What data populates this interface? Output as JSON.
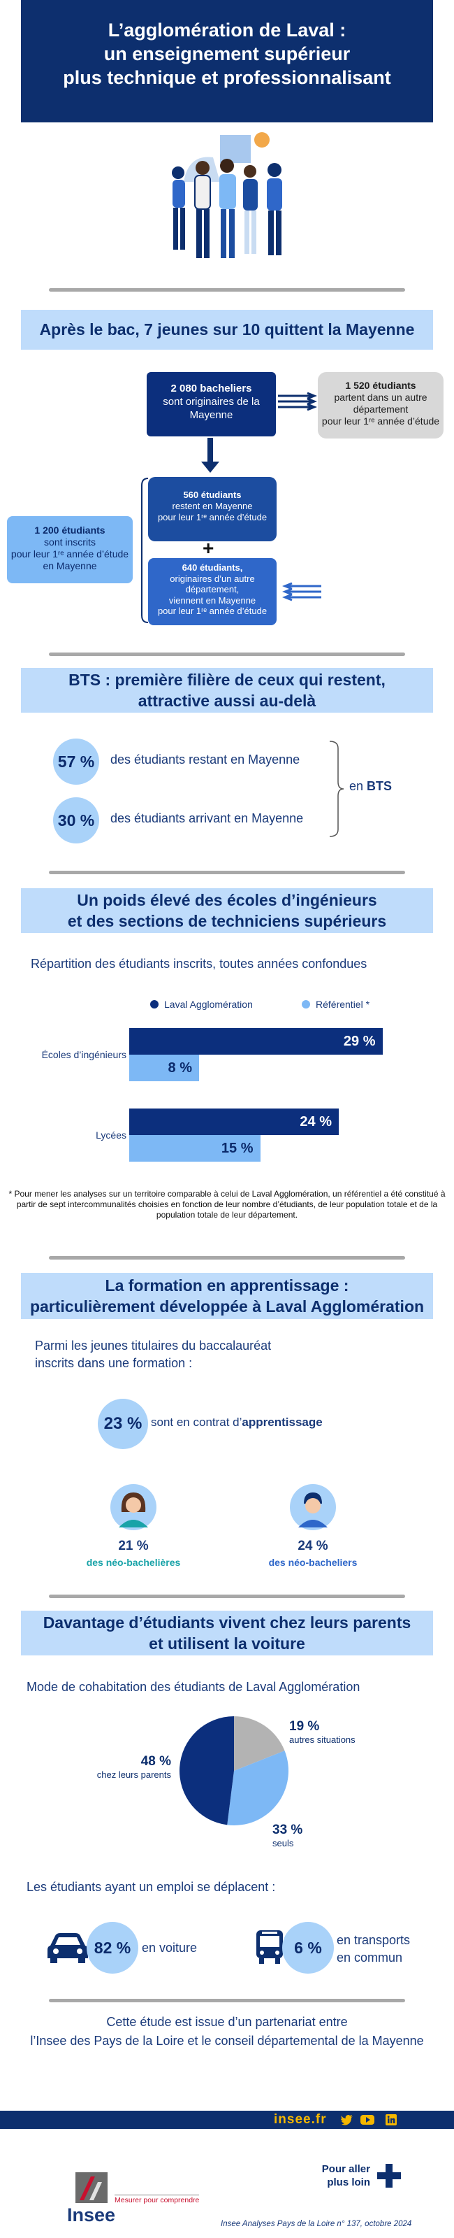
{
  "header": {
    "title_line1": "L’agglomération de Laval :",
    "title_line2": "un enseignement supérieur",
    "title_line3": "plus technique et professionnalisant"
  },
  "section1": {
    "title": "Après le bac, 7 jeunes sur 10 quittent la Mayenne",
    "bacheliers_bold": "2 080 bacheliers",
    "bacheliers_text": "sont originaires de la Mayenne",
    "partent_bold": "1 520 étudiants",
    "partent_text1": "partent dans un autre département",
    "partent_text2": "pour leur 1ʳᵉ année d’étude",
    "restent_bold": "560 étudiants",
    "restent_text1": "restent en Mayenne",
    "restent_text2": "pour leur 1ʳᵉ année d’étude",
    "plus_sign": "+",
    "arrivent_bold": "640 étudiants,",
    "arrivent_text1": "originaires d’un autre département,",
    "arrivent_text2": "viennent en Mayenne",
    "arrivent_text3": "pour leur 1ʳᵉ année d’étude",
    "inscrits_bold": "1 200 étudiants",
    "inscrits_text1": "sont inscrits",
    "inscrits_text2": "pour leur 1ʳᵉ année d’étude",
    "inscrits_text3": "en Mayenne"
  },
  "section2": {
    "title_line1": "BTS : première filière de ceux qui restent,",
    "title_line2": "attractive aussi au-delà",
    "stat1_value": "57 %",
    "stat1_label": "des étudiants restant en Mayenne",
    "stat2_value": "30 %",
    "stat2_label": "des étudiants arrivant en Mayenne",
    "bracket_prefix": "en ",
    "bracket_bold": "BTS"
  },
  "section3": {
    "title_line1": "Un poids élevé des écoles d’ingénieurs",
    "title_line2": "et des sections de techniciens supérieurs",
    "subtitle": "Répartition des étudiants inscrits, toutes années confondues",
    "footnote": "* Pour mener les analyses sur un territoire comparable à celui de Laval Agglomération, un référentiel a été constitué à partir de sept intercommunalités choisies en fonction de leur nombre d’étudiants, de leur population totale et de la population totale de leur département."
  },
  "chart_data": {
    "type": "bar",
    "orientation": "horizontal",
    "categories": [
      "Écoles d’ingénieurs",
      "Lycées"
    ],
    "series": [
      {
        "name": "Laval Agglomération",
        "values": [
          29,
          24
        ],
        "labels": [
          "29 %",
          "24 %"
        ],
        "color": "#0c2f7d"
      },
      {
        "name": "Référentiel *",
        "values": [
          8,
          15
        ],
        "labels": [
          "8 %",
          "15 %"
        ],
        "color": "#7db8f5"
      }
    ],
    "unit": "%",
    "xlim": [
      0,
      30
    ],
    "grid": false,
    "legend": "top"
  },
  "section4": {
    "title_line1": "La formation en apprentissage :",
    "title_line2": "particulièrement développée à Laval Agglomération",
    "intro_line1": "Parmi les jeunes titulaires du baccalauréat",
    "intro_line2": "inscrits dans une formation :",
    "stat_value": "23 %",
    "stat_text": "sont en contrat d’",
    "stat_bold": "apprentissage",
    "female_value": "21 %",
    "female_label": "des néo-bachelières",
    "male_value": "24 %",
    "male_label": "des néo-bacheliers"
  },
  "section5": {
    "title_line1": "Davantage d’étudiants vivent chez leurs parents",
    "title_line2": "et utilisent la voiture",
    "subtitle": "Mode de cohabitation des étudiants de Laval Agglomération",
    "pie": [
      {
        "label": "chez leurs parents",
        "value": 48,
        "display": "48 %",
        "color": "#0c2f7d"
      },
      {
        "label": "autres situations",
        "value": 19,
        "display": "19 %",
        "color": "#b3b3b3"
      },
      {
        "label": "seuls",
        "value": 33,
        "display": "33 %",
        "color": "#7db8f5"
      }
    ],
    "transport_intro": "Les étudiants ayant un emploi se déplacent :",
    "car_value": "82 %",
    "car_label": "en voiture",
    "bus_value": "6 %",
    "bus_label_line1": "en transports",
    "bus_label_line2": "en commun"
  },
  "footer": {
    "partnership_line1": "Cette étude est issue d’un partenariat entre",
    "partnership_line2": "l’Insee des Pays de la Loire et le conseil départemental de la Mayenne",
    "site": "insee.fr",
    "more_line1": "Pour aller",
    "more_line2": "plus loin",
    "logo_text": "Insee",
    "logo_tagline": "Mesurer pour comprendre",
    "publication": "Insee Analyses Pays de la Loire n° 137, octobre 2024"
  },
  "colors": {
    "navy": "#0c2f7d",
    "light_blue": "#7db8f5",
    "title_bg": "#bfdcfb",
    "footer_bar": "#0d2f6e",
    "site_text": "#f5b700"
  }
}
